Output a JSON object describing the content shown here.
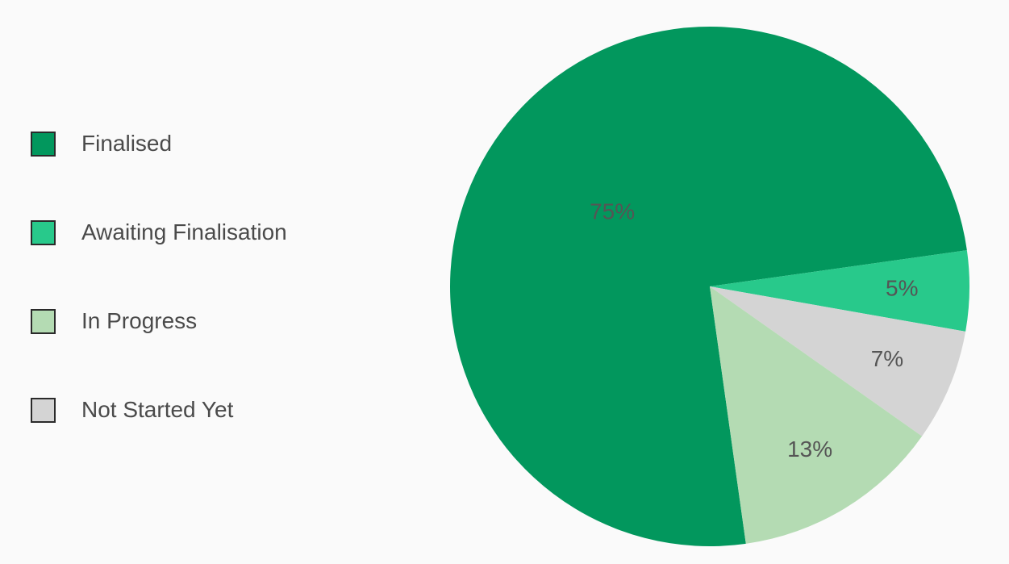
{
  "chart_data": {
    "type": "pie",
    "title": "",
    "legend_position": "left",
    "slices": [
      {
        "label": "Finalised",
        "value": 75,
        "display": "75%",
        "color": "#02975d"
      },
      {
        "label": "Awaiting Finalisation",
        "value": 5,
        "display": "5%",
        "color": "#28c98b"
      },
      {
        "label": "Not Started Yet",
        "value": 7,
        "display": "7%",
        "color": "#d4d4d4"
      },
      {
        "label": "In Progress",
        "value": 13,
        "display": "13%",
        "color": "#b4dbb3"
      }
    ],
    "legend": [
      {
        "label": "Finalised",
        "color": "#02975d"
      },
      {
        "label": "Awaiting Finalisation",
        "color": "#28c98b"
      },
      {
        "label": "In Progress",
        "color": "#b4dbb3"
      },
      {
        "label": "Not Started Yet",
        "color": "#d4d4d4"
      }
    ]
  }
}
